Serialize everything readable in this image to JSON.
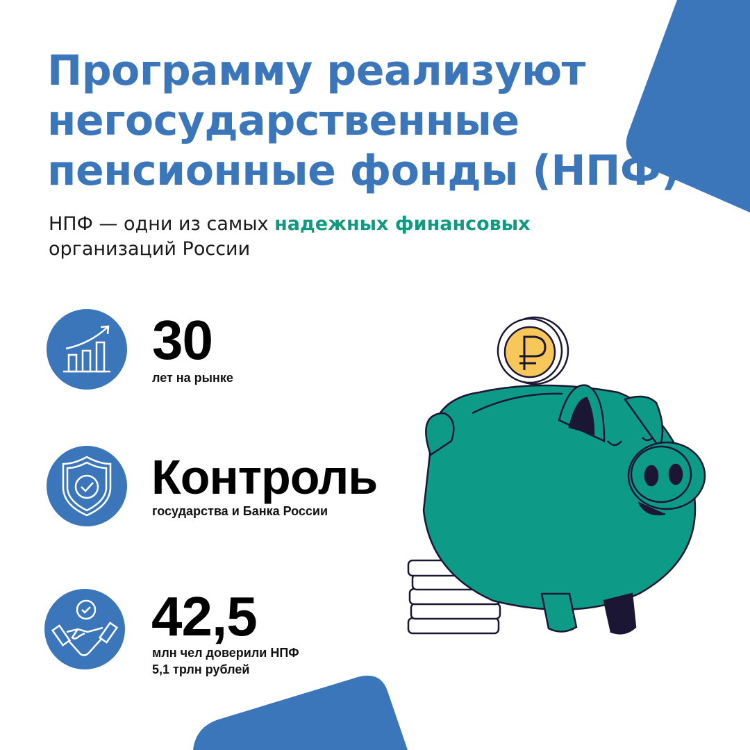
{
  "header": {
    "title_lines": [
      "Программу реализуют",
      "негосударственные",
      "пенсионные фонды (НПФ)"
    ],
    "subtitle": {
      "before": "НПФ — одни из самых ",
      "highlight": "надежных финансовых",
      "after": "организаций России"
    }
  },
  "stats": [
    {
      "icon": "growth-chart-icon",
      "value": "30",
      "caption_lines": [
        "лет на рынке"
      ]
    },
    {
      "icon": "shield-check-icon",
      "value": "Контроль",
      "caption_lines": [
        "государства и Банка России"
      ]
    },
    {
      "icon": "handshake-icon",
      "value": "42,5",
      "caption_lines": [
        "млн чел доверили НПФ",
        "5,1 трлн рублей"
      ]
    }
  ],
  "illustration": {
    "icon": "piggy-bank-with-ruble-coin"
  },
  "colors": {
    "brand_blue": "#3b76bb",
    "accent_green": "#109a80",
    "piggy_green": "#0d9a86",
    "coin_yellow": "#f7c75a"
  }
}
